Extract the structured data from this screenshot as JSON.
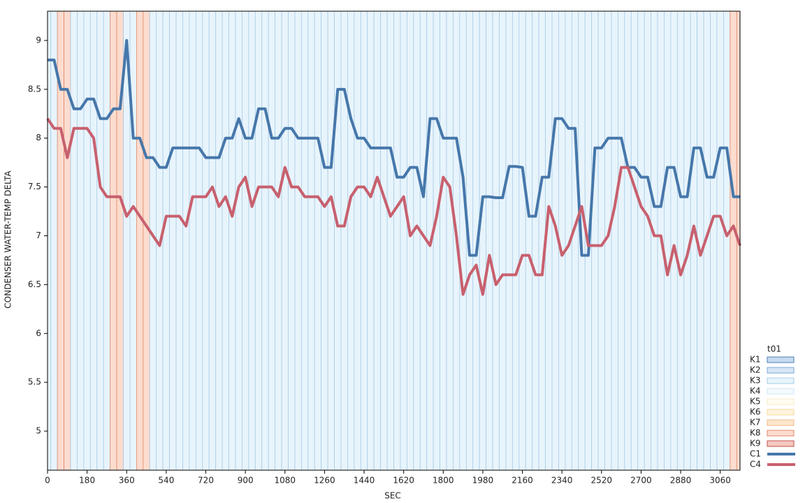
{
  "chart_data": {
    "type": "line",
    "x_label": "SEC",
    "y_label": "CONDENSER WATER-TEMP DELTA",
    "legend_title": "t01",
    "legend": "right",
    "xlim": [
      0,
      3150
    ],
    "ylim": [
      4.6,
      9.3
    ],
    "xticks": [
      0,
      180,
      360,
      540,
      720,
      900,
      1080,
      1260,
      1440,
      1620,
      1800,
      1980,
      2160,
      2340,
      2520,
      2700,
      2880,
      3060
    ],
    "yticks": [
      5,
      5.5,
      6,
      6.5,
      7,
      7.5,
      8,
      8.5,
      9
    ],
    "x": [
      0,
      30,
      60,
      90,
      120,
      150,
      180,
      210,
      240,
      270,
      300,
      330,
      360,
      390,
      420,
      450,
      480,
      510,
      540,
      570,
      600,
      630,
      660,
      690,
      720,
      750,
      780,
      810,
      840,
      870,
      900,
      930,
      960,
      990,
      1020,
      1050,
      1080,
      1110,
      1140,
      1170,
      1200,
      1230,
      1260,
      1290,
      1320,
      1350,
      1380,
      1410,
      1440,
      1470,
      1500,
      1530,
      1560,
      1590,
      1620,
      1650,
      1680,
      1710,
      1740,
      1770,
      1800,
      1830,
      1860,
      1890,
      1920,
      1950,
      1980,
      2010,
      2040,
      2070,
      2100,
      2130,
      2160,
      2190,
      2220,
      2250,
      2280,
      2310,
      2340,
      2370,
      2400,
      2430,
      2460,
      2490,
      2520,
      2550,
      2580,
      2610,
      2640,
      2670,
      2700,
      2730,
      2760,
      2790,
      2820,
      2850,
      2880,
      2910,
      2940,
      2970,
      3000,
      3030,
      3060,
      3090,
      3120,
      3150
    ],
    "band_keys": [
      {
        "name": "K1",
        "fill": "#c6dbef",
        "stroke": "#4a7fb5"
      },
      {
        "name": "K2",
        "fill": "#d6e6f4",
        "stroke": "#7eaad4"
      },
      {
        "name": "K3",
        "fill": "#e8f4fc",
        "stroke": "#a8cce6"
      },
      {
        "name": "K4",
        "fill": "#f3f9fd",
        "stroke": "#d0e6f4"
      },
      {
        "name": "K5",
        "fill": "#fffcf0",
        "stroke": "#f6ecc8"
      },
      {
        "name": "K6",
        "fill": "#fff3dc",
        "stroke": "#f5d9a0"
      },
      {
        "name": "K7",
        "fill": "#fde6cc",
        "stroke": "#f0b888"
      },
      {
        "name": "K8",
        "fill": "#fcdccf",
        "stroke": "#e08a6a"
      },
      {
        "name": "K9",
        "fill": "#f5c9c0",
        "stroke": "#c0504d"
      }
    ],
    "bands": [
      "K3",
      "K3",
      "K8",
      "K8",
      "K3",
      "K3",
      "K3",
      "K3",
      "K3",
      "K3",
      "K8",
      "K8",
      "K3",
      "K3",
      "K8",
      "K8",
      "K3",
      "K3",
      "K3",
      "K3",
      "K3",
      "K3",
      "K3",
      "K3",
      "K3",
      "K3",
      "K3",
      "K3",
      "K3",
      "K3",
      "K3",
      "K3",
      "K3",
      "K3",
      "K3",
      "K3",
      "K3",
      "K3",
      "K3",
      "K3",
      "K3",
      "K3",
      "K3",
      "K3",
      "K3",
      "K3",
      "K3",
      "K3",
      "K3",
      "K3",
      "K3",
      "K3",
      "K3",
      "K3",
      "K3",
      "K3",
      "K3",
      "K3",
      "K3",
      "K3",
      "K3",
      "K3",
      "K3",
      "K3",
      "K3",
      "K3",
      "K3",
      "K3",
      "K3",
      "K3",
      "K3",
      "K3",
      "K3",
      "K3",
      "K3",
      "K3",
      "K3",
      "K3",
      "K3",
      "K3",
      "K3",
      "K3",
      "K3",
      "K3",
      "K3",
      "K3",
      "K3",
      "K3",
      "K3",
      "K3",
      "K3",
      "K3",
      "K3",
      "K3",
      "K3",
      "K3",
      "K3",
      "K3",
      "K3",
      "K3",
      "K3",
      "K3",
      "K3",
      "K3",
      "K8",
      "K8"
    ],
    "series": [
      {
        "name": "C1",
        "color": "#4677aa",
        "values": [
          8.8,
          8.8,
          8.5,
          8.5,
          8.3,
          8.3,
          8.4,
          8.4,
          8.2,
          8.2,
          8.3,
          8.3,
          9.0,
          8.0,
          8.0,
          7.8,
          7.8,
          7.7,
          7.7,
          7.9,
          7.9,
          7.9,
          7.9,
          7.9,
          7.8,
          7.8,
          7.8,
          8.0,
          8.0,
          8.2,
          8.0,
          8.0,
          8.3,
          8.3,
          8.0,
          8.0,
          8.1,
          8.1,
          8.0,
          8.0,
          8.0,
          8.0,
          7.7,
          7.7,
          8.5,
          8.5,
          8.2,
          8.0,
          8.0,
          7.9,
          7.9,
          7.9,
          7.9,
          7.6,
          7.6,
          7.7,
          7.7,
          7.4,
          8.2,
          8.2,
          8.0,
          8.0,
          8.0,
          7.6,
          6.8,
          6.8,
          7.4,
          7.4,
          7.39,
          7.39,
          7.71,
          7.71,
          7.7,
          7.2,
          7.2,
          7.6,
          7.6,
          8.2,
          8.2,
          8.1,
          8.1,
          6.8,
          6.8,
          7.9,
          7.9,
          8.0,
          8.0,
          8.0,
          7.7,
          7.7,
          7.6,
          7.6,
          7.3,
          7.3,
          7.7,
          7.7,
          7.4,
          7.4,
          7.9,
          7.9,
          7.6,
          7.6,
          7.9,
          7.9,
          7.4,
          7.4
        ]
      },
      {
        "name": "C4",
        "color": "#c8606e",
        "values": [
          8.2,
          8.1,
          8.1,
          7.8,
          8.1,
          8.1,
          8.1,
          8.0,
          7.5,
          7.4,
          7.4,
          7.4,
          7.2,
          7.3,
          7.2,
          7.1,
          7.0,
          6.9,
          7.2,
          7.2,
          7.2,
          7.1,
          7.4,
          7.4,
          7.4,
          7.5,
          7.3,
          7.4,
          7.2,
          7.5,
          7.6,
          7.3,
          7.5,
          7.5,
          7.5,
          7.4,
          7.7,
          7.5,
          7.5,
          7.4,
          7.4,
          7.4,
          7.3,
          7.4,
          7.1,
          7.1,
          7.4,
          7.5,
          7.5,
          7.4,
          7.6,
          7.4,
          7.2,
          7.3,
          7.4,
          7.0,
          7.1,
          7.0,
          6.9,
          7.2,
          7.6,
          7.5,
          7.0,
          6.4,
          6.6,
          6.7,
          6.4,
          6.8,
          6.5,
          6.6,
          6.6,
          6.6,
          6.8,
          6.8,
          6.6,
          6.6,
          7.3,
          7.1,
          6.8,
          6.9,
          7.1,
          7.3,
          6.9,
          6.9,
          6.9,
          7.0,
          7.3,
          7.7,
          7.7,
          7.5,
          7.3,
          7.2,
          7.0,
          7.0,
          6.6,
          6.9,
          6.6,
          6.8,
          7.1,
          6.8,
          7.0,
          7.2,
          7.2,
          7.0,
          7.1,
          6.9
        ]
      }
    ]
  }
}
